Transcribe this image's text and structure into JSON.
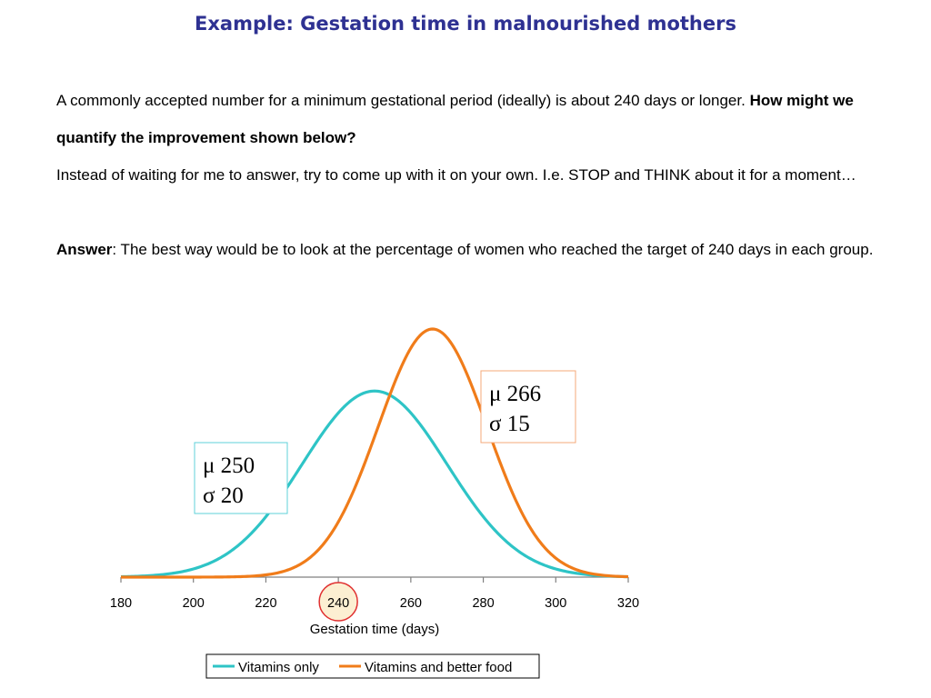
{
  "slide": {
    "title": "Example: Gestation time in malnourished mothers",
    "para1_a": "A commonly accepted number for a minimum gestational period (ideally) is about 240 days or longer.",
    "para1_b": "How might we quantify the improvement shown below?",
    "para2": "Instead of waiting for me to answer, try to come up with it on your own.  I.e. STOP and THINK about it for a moment…",
    "answer_label": "Answer",
    "answer_text": ": The best way would be to look at the percentage of women who reached the target of 240 days in each group."
  },
  "chart_data": {
    "type": "line",
    "xlabel": "Gestation time (days)",
    "xlim": [
      180,
      320
    ],
    "xticks": [
      180,
      200,
      220,
      240,
      260,
      280,
      300,
      320
    ],
    "highlighted_tick": 240,
    "grid": false,
    "legend_position": "bottom",
    "series": [
      {
        "name": "Vitamins only",
        "color": "#2ec4c6",
        "mean": 250,
        "sd": 20,
        "mu_label": "μ 250",
        "sigma_label": "σ 20"
      },
      {
        "name": "Vitamins and better food",
        "color": "#f07c1a",
        "mean": 266,
        "sd": 15,
        "mu_label": "μ 266",
        "sigma_label": "σ 15"
      }
    ]
  }
}
